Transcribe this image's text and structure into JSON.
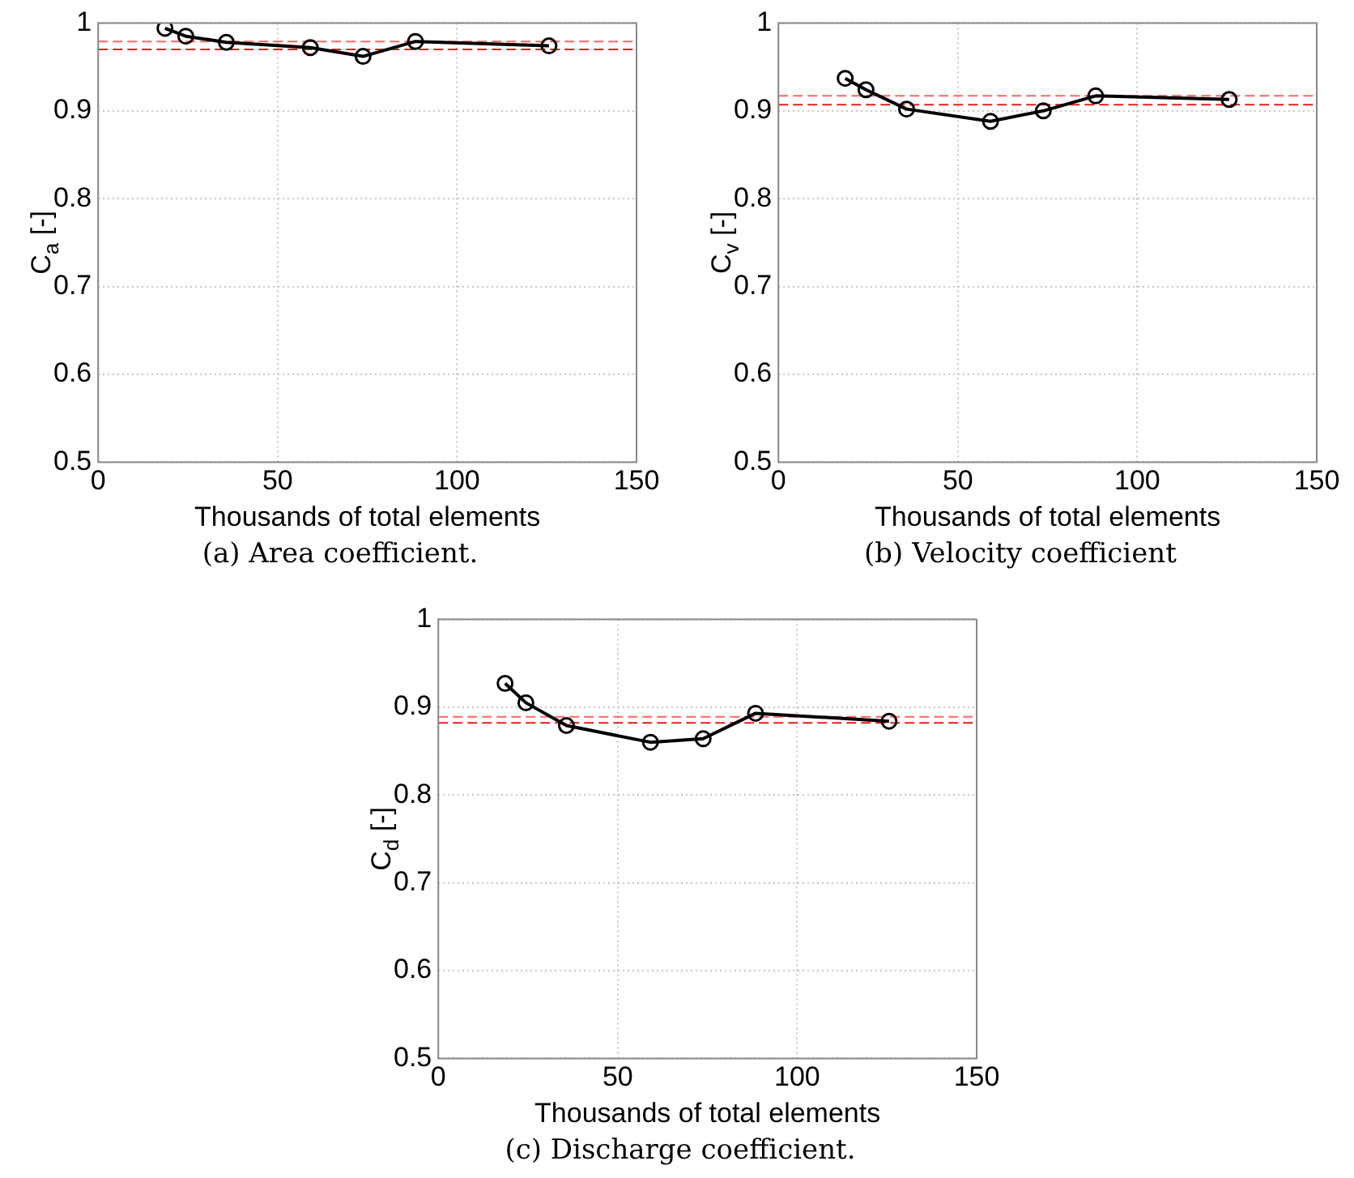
{
  "chart_data": [
    {
      "type": "line",
      "title": "(a) Area coefficient.",
      "xlabel": "Thousands of total elements",
      "ylabel": "C$_{a}$ [-]",
      "x": [
        18.6,
        24.4,
        35.7,
        59.1,
        73.8,
        88.4,
        125.6
      ],
      "series": [
        {
          "color": "#000000",
          "values": [
            0.994,
            0.985,
            0.978,
            0.972,
            0.962,
            0.979,
            0.974
          ]
        }
      ],
      "xlim": [
        0,
        150
      ],
      "xticks": [
        0,
        50,
        100,
        150
      ],
      "ylim": [
        0.5,
        1
      ],
      "yticks": [
        0.5,
        0.6,
        0.7,
        0.8,
        0.9,
        1
      ],
      "grid": true,
      "legend": false,
      "marker": "circle",
      "line_style": "solid",
      "ref_lines": [
        {
          "axis": "y",
          "value": 0.979,
          "color": "#ff6666",
          "line_style": "dashed"
        },
        {
          "axis": "y",
          "value": 0.97,
          "color": "#e02020",
          "line_style": "dashed"
        }
      ]
    },
    {
      "type": "line",
      "title": "(b) Velocity coefficient",
      "xlabel": "Thousands of total elements",
      "ylabel": "C$_{v}$ [-]",
      "x": [
        18.6,
        24.4,
        35.7,
        59.1,
        73.8,
        88.4,
        125.6
      ],
      "series": [
        {
          "color": "#000000",
          "values": [
            0.937,
            0.924,
            0.902,
            0.888,
            0.9,
            0.917,
            0.913
          ]
        }
      ],
      "xlim": [
        0,
        150
      ],
      "xticks": [
        0,
        50,
        100,
        150
      ],
      "ylim": [
        0.5,
        1
      ],
      "yticks": [
        0.5,
        0.6,
        0.7,
        0.8,
        0.9,
        1
      ],
      "grid": true,
      "legend": false,
      "marker": "circle",
      "line_style": "solid",
      "ref_lines": [
        {
          "axis": "y",
          "value": 0.917,
          "color": "#ff6666",
          "line_style": "dashed"
        },
        {
          "axis": "y",
          "value": 0.907,
          "color": "#e02020",
          "line_style": "dashed"
        }
      ]
    },
    {
      "type": "line",
      "title": "(c) Discharge coefficient.",
      "xlabel": "Thousands of total elements",
      "ylabel": "C$_{d}$ [-]",
      "x": [
        18.6,
        24.4,
        35.7,
        59.1,
        73.8,
        88.4,
        125.6
      ],
      "series": [
        {
          "color": "#000000",
          "values": [
            0.927,
            0.905,
            0.879,
            0.86,
            0.864,
            0.893,
            0.884
          ]
        }
      ],
      "xlim": [
        0,
        150
      ],
      "xticks": [
        0,
        50,
        100,
        150
      ],
      "ylim": [
        0.5,
        1
      ],
      "yticks": [
        0.5,
        0.6,
        0.7,
        0.8,
        0.9,
        1
      ],
      "grid": true,
      "legend": false,
      "marker": "circle",
      "line_style": "solid",
      "ref_lines": [
        {
          "axis": "y",
          "value": 0.889,
          "color": "#ff6666",
          "line_style": "dashed"
        },
        {
          "axis": "y",
          "value": 0.882,
          "color": "#e02020",
          "line_style": "dashed"
        }
      ]
    }
  ]
}
